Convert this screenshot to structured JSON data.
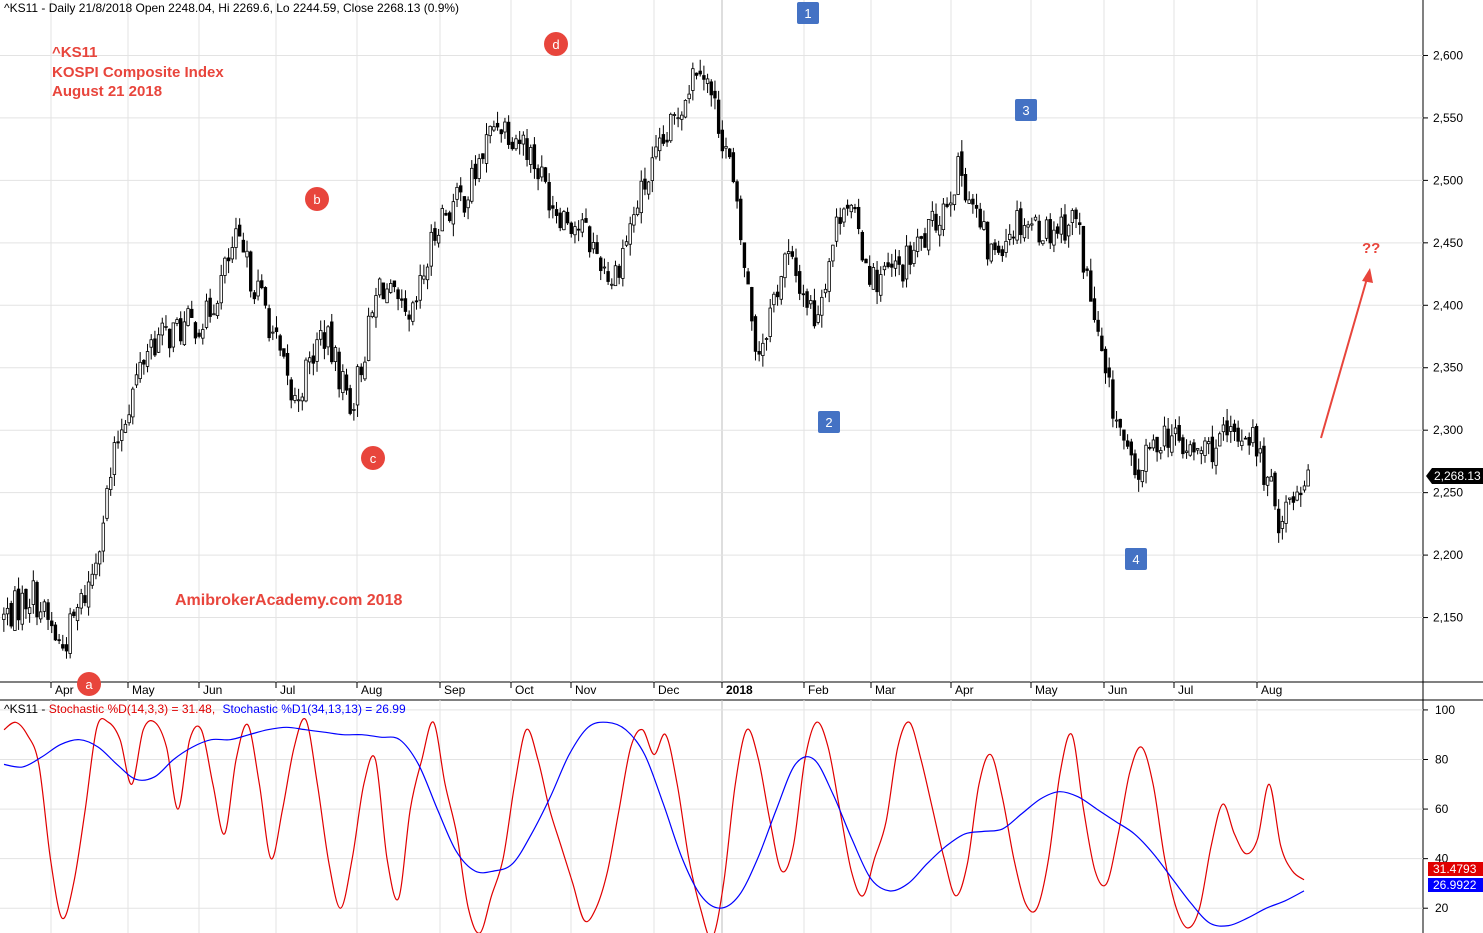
{
  "header": {
    "price_title": "^KS11 - Daily 21/8/2018 Open 2248.04, Hi 2269.6, Lo 2244.59, Close 2268.13 (0.9%)",
    "osc_prefix": "^KS11 - ",
    "osc_k_label": "Stochastic %D(14,3,3) = 31.48,",
    "osc_d_label": "Stochastic %D1(34,13,13) = 26.99"
  },
  "annotations": {
    "title_lines": [
      "^KS11",
      "KOSPI Composite Index",
      "August 21 2018"
    ],
    "watermark": "AmibrokerAcademy.com  2018",
    "question": "??",
    "abcd_labels": [
      "a",
      "b",
      "c",
      "d"
    ],
    "wave_labels": [
      "1",
      "2",
      "3",
      "4"
    ]
  },
  "colors": {
    "background": "#ffffff",
    "candle": "#000000",
    "annotation_red": "#e8453c",
    "wave_blue": "#4472c4",
    "stoch_k": "#e00000",
    "stoch_d": "#0000ff",
    "grid": "#e3e3e3"
  },
  "chart_data": [
    {
      "type": "candlestick",
      "title": "^KS11 - Daily 21/8/2018 Open 2248.04, Hi 2269.6, Lo 2244.59, Close 2268.13 (0.9%)",
      "x_axis_labels": [
        "Apr",
        "May",
        "Jun",
        "Jul",
        "Aug",
        "Sep",
        "Oct",
        "Nov",
        "Dec",
        "2018",
        "Feb",
        "Mar",
        "Apr",
        "May",
        "Jun",
        "Jul",
        "Aug"
      ],
      "y_ticks": [
        2150,
        2200,
        2250,
        2300,
        2350,
        2400,
        2450,
        2500,
        2550,
        2600
      ],
      "ylim": [
        2100,
        2630
      ],
      "last_close": 2268.13,
      "last_close_label": "2,268.13",
      "grid": true,
      "series_path": [
        {
          "x": "Apr",
          "close": 2150
        },
        {
          "x": "Apr",
          "close": 2170
        },
        {
          "x": "Apr",
          "close": 2125
        },
        {
          "x": "May",
          "close": 2180
        },
        {
          "x": "May",
          "close": 2300
        },
        {
          "x": "Jun",
          "close": 2370
        },
        {
          "x": "Jun",
          "close": 2380
        },
        {
          "x": "Jul",
          "close": 2390
        },
        {
          "x": "Jul",
          "close": 2450
        },
        {
          "x": "Aug",
          "close": 2400
        },
        {
          "x": "Aug",
          "close": 2320
        },
        {
          "x": "Aug",
          "close": 2380
        },
        {
          "x": "Sep",
          "close": 2320
        },
        {
          "x": "Sep",
          "close": 2420
        },
        {
          "x": "Oct",
          "close": 2380
        },
        {
          "x": "Oct",
          "close": 2470
        },
        {
          "x": "Oct",
          "close": 2490
        },
        {
          "x": "Nov",
          "close": 2550
        },
        {
          "x": "Nov",
          "close": 2530
        },
        {
          "x": "Dec",
          "close": 2480
        },
        {
          "x": "Dec",
          "close": 2460
        },
        {
          "x": "Dec",
          "close": 2420
        },
        {
          "x": "2018",
          "close": 2490
        },
        {
          "x": "2018",
          "close": 2540
        },
        {
          "x": "2018",
          "close": 2600
        },
        {
          "x": "Feb",
          "close": 2520
        },
        {
          "x": "Feb",
          "close": 2360
        },
        {
          "x": "Feb",
          "close": 2440
        },
        {
          "x": "Mar",
          "close": 2390
        },
        {
          "x": "Mar",
          "close": 2490
        },
        {
          "x": "Mar",
          "close": 2420
        },
        {
          "x": "Apr",
          "close": 2430
        },
        {
          "x": "Apr",
          "close": 2460
        },
        {
          "x": "May",
          "close": 2510
        },
        {
          "x": "May",
          "close": 2440
        },
        {
          "x": "May",
          "close": 2470
        },
        {
          "x": "Jun",
          "close": 2460
        },
        {
          "x": "Jun",
          "close": 2470
        },
        {
          "x": "Jun",
          "close": 2340
        },
        {
          "x": "Jul",
          "close": 2260
        },
        {
          "x": "Jul",
          "close": 2300
        },
        {
          "x": "Jul",
          "close": 2280
        },
        {
          "x": "Aug",
          "close": 2290
        },
        {
          "x": "Aug",
          "close": 2300
        },
        {
          "x": "Aug",
          "close": 2230
        },
        {
          "x": "Aug",
          "close": 2268.13
        }
      ]
    },
    {
      "type": "line",
      "title": "^KS11 - Stochastic %D(14,3,3) = 31.48, Stochastic %D1(34,13,13) = 26.99",
      "y_ticks": [
        20,
        40,
        60,
        80,
        100
      ],
      "ylim": [
        10,
        104
      ],
      "series": [
        {
          "name": "Stochastic %D(14,3,3)",
          "last_value_label": "31.4793",
          "values": [
            92,
            95,
            90,
            78,
            40,
            16,
            30,
            60,
            93,
            95,
            88,
            70,
            92,
            95,
            85,
            60,
            88,
            92,
            70,
            50,
            80,
            94,
            70,
            40,
            60,
            85,
            96,
            70,
            38,
            20,
            40,
            70,
            80,
            40,
            24,
            60,
            80,
            95,
            70,
            50,
            20,
            10,
            25,
            40,
            70,
            92,
            80,
            60,
            45,
            30,
            15,
            20,
            35,
            60,
            85,
            92,
            82,
            90,
            70,
            40,
            20,
            8,
            30,
            70,
            92,
            80,
            55,
            35,
            45,
            80,
            95,
            85,
            60,
            35,
            25,
            40,
            55,
            85,
            95,
            80,
            60,
            40,
            25,
            38,
            70,
            82,
            65,
            40,
            22,
            20,
            40,
            75,
            90,
            60,
            35,
            30,
            50,
            75,
            85,
            70,
            40,
            20,
            12,
            20,
            45,
            62,
            50,
            42,
            48,
            70,
            45,
            35,
            31.48
          ]
        },
        {
          "name": "Stochastic %D1(34,13,13)",
          "last_value_label": "26.9922",
          "values": [
            78,
            77,
            81,
            86,
            88,
            85,
            78,
            72,
            73,
            80,
            85,
            88,
            88,
            90,
            92,
            93,
            92,
            91,
            90,
            90,
            89,
            88,
            78,
            60,
            43,
            35,
            35,
            38,
            50,
            65,
            82,
            93,
            95,
            92,
            82,
            62,
            40,
            25,
            20,
            25,
            40,
            60,
            78,
            80,
            66,
            48,
            32,
            27,
            30,
            38,
            45,
            50,
            51,
            52,
            58,
            64,
            67,
            65,
            60,
            55,
            50,
            42,
            32,
            22,
            14,
            13,
            16,
            20,
            23,
            26.99
          ]
        }
      ]
    }
  ]
}
